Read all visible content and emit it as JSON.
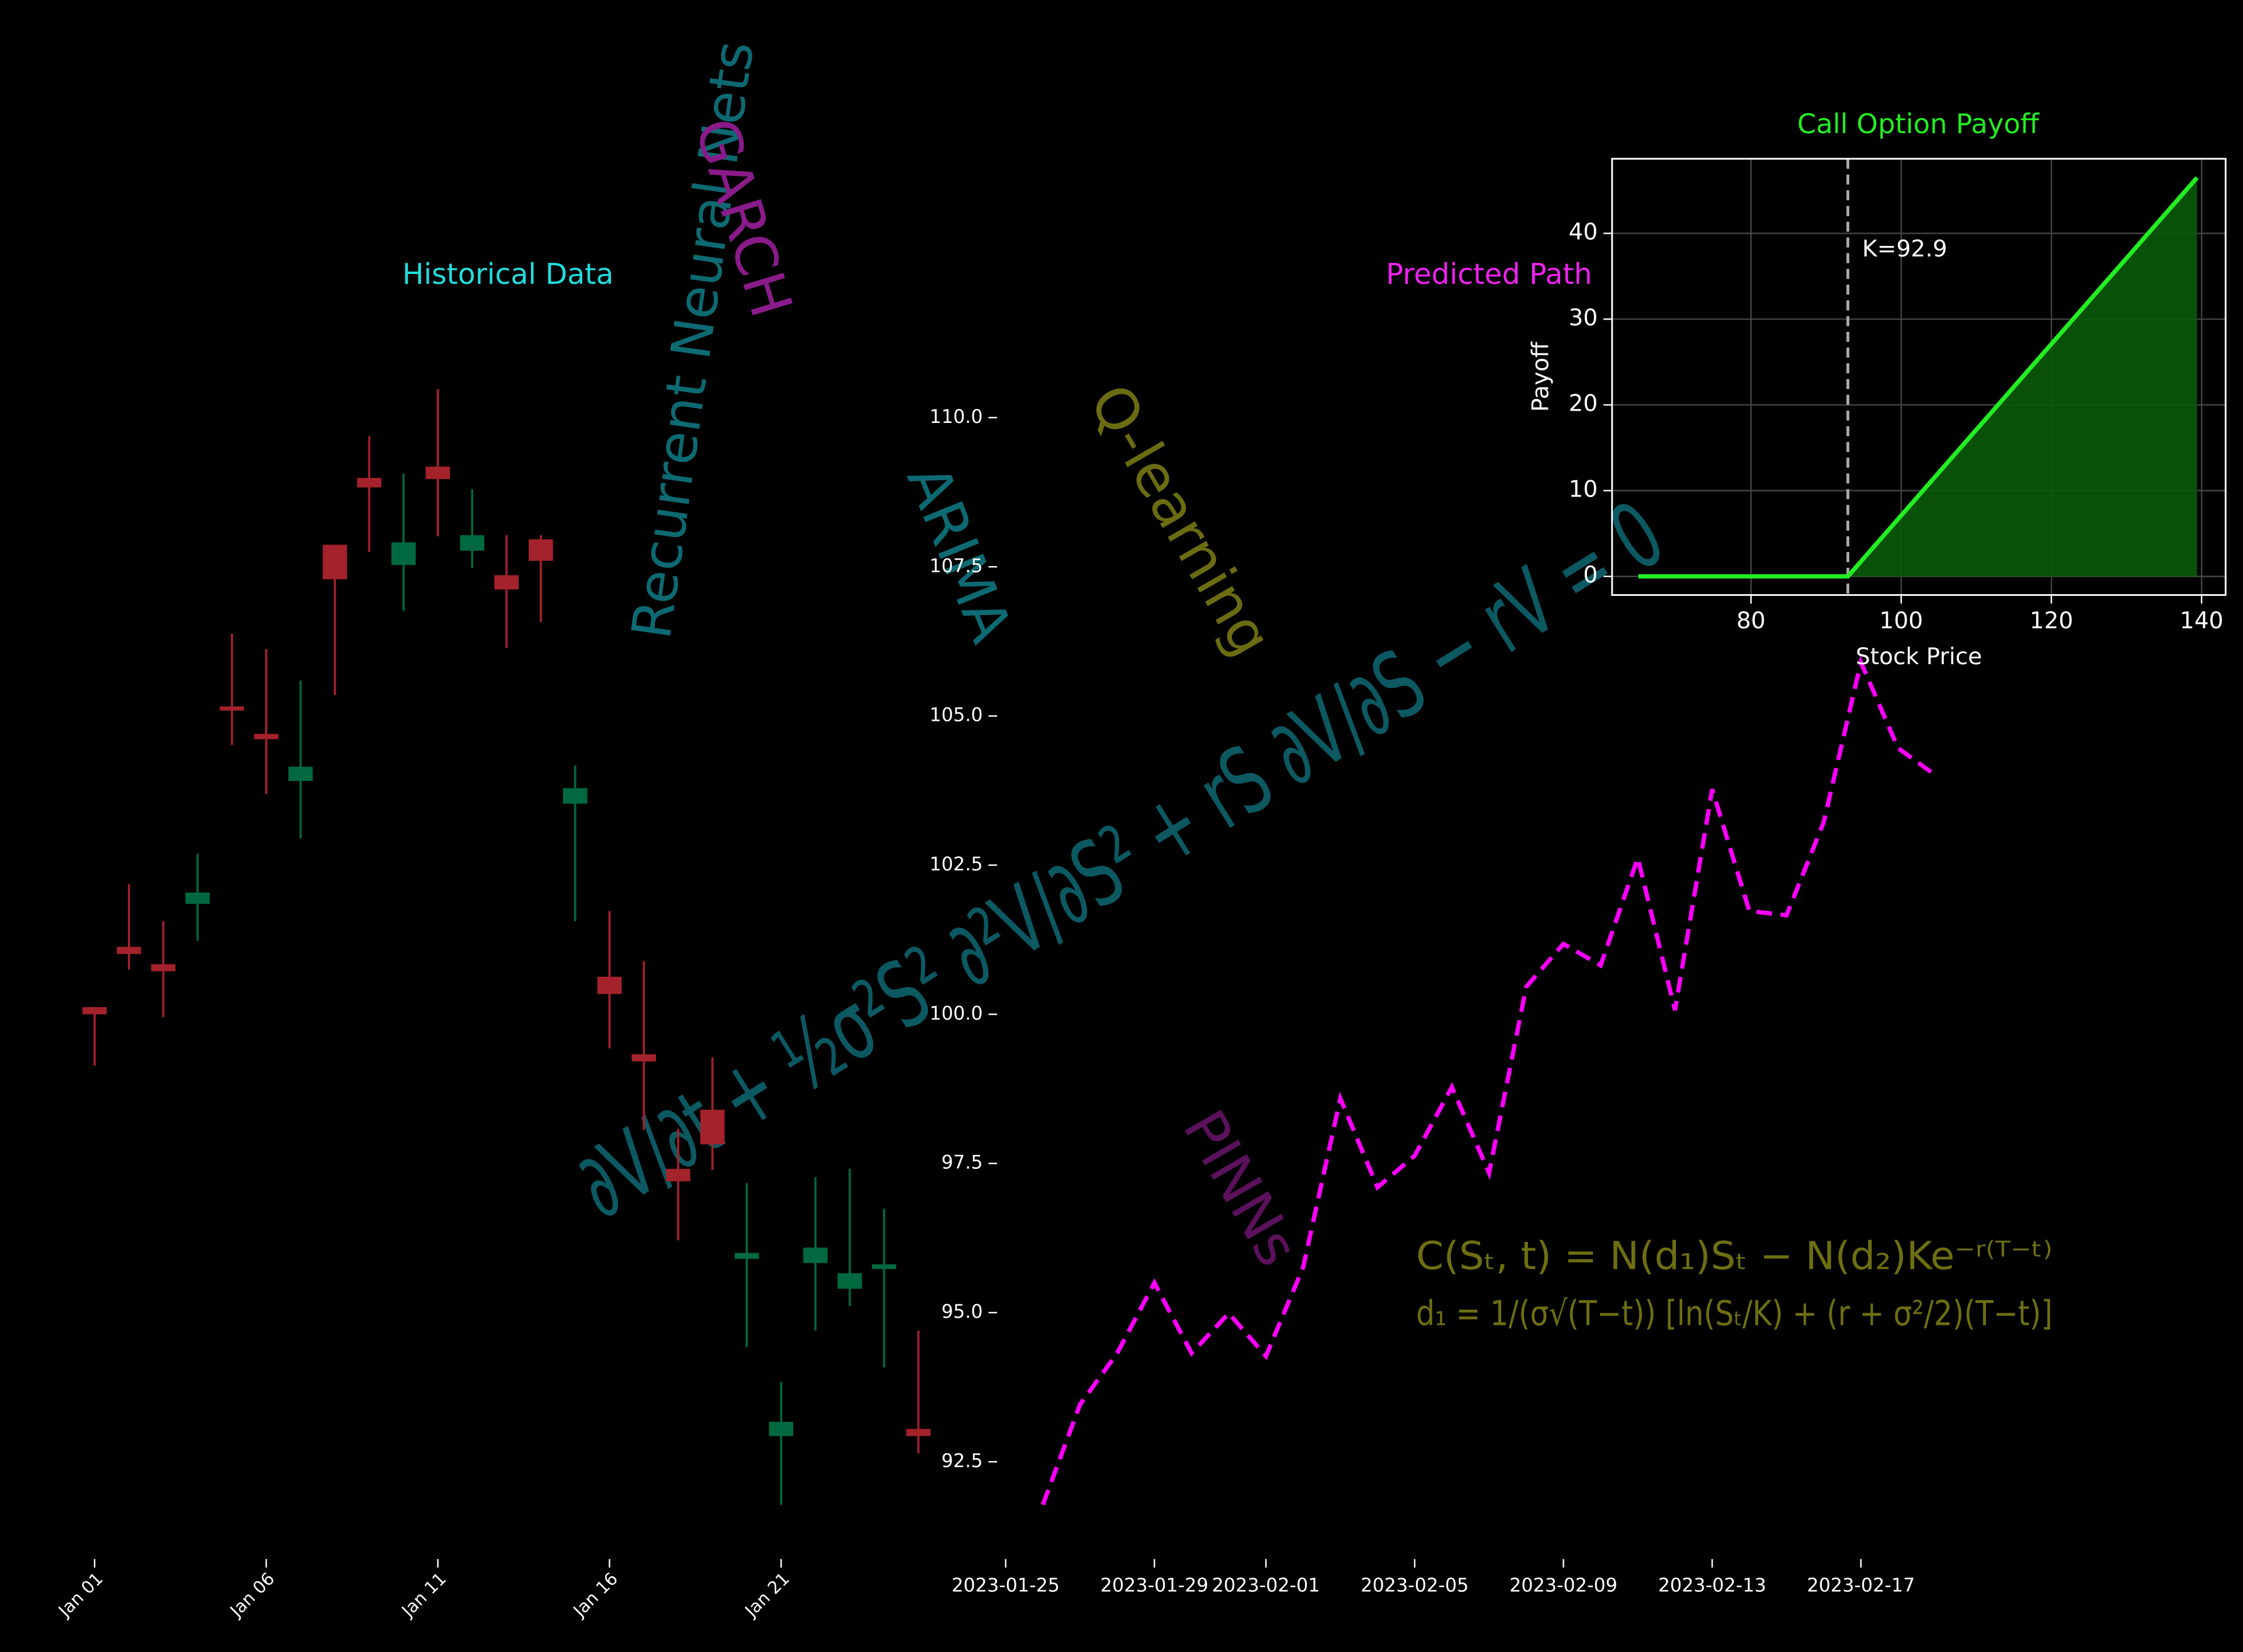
{
  "chart_data": [
    {
      "type": "candlestick",
      "title": "Historical Data",
      "title_color": "#22dddd",
      "categories": [
        "Jan 01",
        null,
        null,
        null,
        null,
        "Jan 06",
        null,
        null,
        null,
        null,
        "Jan 11",
        null,
        null,
        null,
        null,
        "Jan 16",
        null,
        null,
        null,
        null,
        "Jan 21",
        null,
        null,
        null,
        null
      ],
      "open": [
        100.12,
        101.13,
        100.84,
        101.85,
        105.16,
        104.7,
        103.91,
        107.87,
        108.99,
        107.53,
        109.18,
        107.77,
        107.36,
        107.96,
        103.53,
        100.63,
        99.33,
        97.41,
        98.4,
        95.9,
        92.93,
        95.83,
        95.4,
        95.73,
        93.05
      ],
      "high": [
        100.12,
        102.18,
        101.56,
        102.69,
        106.38,
        106.12,
        105.59,
        107.87,
        109.69,
        109.06,
        110.48,
        108.8,
        108.03,
        108.03,
        104.17,
        101.73,
        100.89,
        98.08,
        99.28,
        97.17,
        93.84,
        97.27,
        97.41,
        96.74,
        94.7
      ],
      "low": [
        99.14,
        100.75,
        99.95,
        101.23,
        104.51,
        103.69,
        102.95,
        105.35,
        107.75,
        106.76,
        108.01,
        107.48,
        106.14,
        106.57,
        101.56,
        99.43,
        98.06,
        96.21,
        97.39,
        94.42,
        91.78,
        94.7,
        95.11,
        94.08,
        92.64
      ],
      "close": [
        100.0,
        101.01,
        100.72,
        102.04,
        105.09,
        104.61,
        104.15,
        107.29,
        108.83,
        107.91,
        108.97,
        108.03,
        107.12,
        107.6,
        103.79,
        100.34,
        99.21,
        97.2,
        97.82,
        96.0,
        93.17,
        96.09,
        95.66,
        95.81,
        92.93
      ],
      "up_color": "#00693f",
      "down_color": "#a3222b",
      "ylim": [
        90.87,
        116.52
      ]
    },
    {
      "type": "line",
      "title": "Predicted Path",
      "title_color": "#ee22ee",
      "x": [
        "2023-01-26",
        "2023-01-27",
        "2023-01-28",
        "2023-01-29",
        "2023-01-30",
        "2023-01-31",
        "2023-02-01",
        "2023-02-02",
        "2023-02-03",
        "2023-02-04",
        "2023-02-05",
        "2023-02-06",
        "2023-02-07",
        "2023-02-08",
        "2023-02-09",
        "2023-02-10",
        "2023-02-11",
        "2023-02-12",
        "2023-02-13",
        "2023-02-14",
        "2023-02-15",
        "2023-02-16",
        "2023-02-17",
        "2023-02-18",
        "2023-02-19"
      ],
      "values": [
        91.78,
        93.46,
        94.32,
        95.5,
        94.32,
        94.99,
        94.27,
        95.76,
        98.59,
        97.1,
        97.63,
        98.78,
        97.34,
        100.46,
        101.18,
        100.82,
        102.62,
        100.07,
        103.77,
        101.73,
        101.66,
        103.22,
        105.9,
        104.46,
        104.01
      ],
      "color": "#ff00ff",
      "line_style": "dashed",
      "xlim": [
        "2023-01-25",
        "2023-02-27"
      ],
      "xticks": [
        "2023-01-25",
        "2023-01-29",
        "2023-02-01",
        "2023-02-05",
        "2023-02-09",
        "2023-02-13",
        "2023-02-17"
      ],
      "ylim": [
        90.87,
        116.52
      ],
      "yticks": [
        92.5,
        {
          "value": 95,
          "label": "95.0"
        },
        97.5,
        {
          "value": 100,
          "label": "100.0"
        },
        102.5,
        {
          "value": 105,
          "label": "105.0"
        },
        107.5,
        {
          "value": 110,
          "label": "110.0"
        }
      ],
      "grid": false
    },
    {
      "type": "line",
      "title": "Call Option Payoff",
      "title_color": "#22ee22",
      "x": [
        65,
        92.9,
        139.4
      ],
      "values": [
        0,
        0,
        46.5
      ],
      "color": "#22ee22",
      "line_style": "solid",
      "fill": true,
      "fill_color": "#0a5a0a",
      "strike": 92.9,
      "strike_label": "K=92.9",
      "xlabel": "Stock Price",
      "ylabel": "Payoff",
      "xlim": [
        61.5,
        143.2
      ],
      "xticks": [
        80,
        100,
        120,
        140
      ],
      "ylim": [
        -2.17,
        48.7
      ],
      "yticks": [
        0,
        10,
        20,
        30,
        40
      ],
      "grid": true,
      "frame": true
    }
  ],
  "annotations": [
    {
      "text": "Recurrent Neural Nets",
      "color": "#0d6a72"
    },
    {
      "text": "GARCH",
      "color": "#8a1b8a"
    },
    {
      "text": "ARIMA",
      "color": "#0d6a72"
    },
    {
      "text": "Q-learning",
      "color": "#6b6b12"
    },
    {
      "text": "∂V/∂t + ½σ²S² ∂²V/∂S² + rS ∂V/∂S − rV = 0",
      "color": "#0c5962"
    },
    {
      "text": "PINNs",
      "color": "#5b115b"
    },
    {
      "text": "C(Sₜ, t) = N(d₁)Sₜ − N(d₂)Ke⁻ʳ⁽ᵀ⁻ᵗ⁾",
      "color": "#6e6e12"
    },
    {
      "text": "d₁ = 1/(σ√(T−t)) [ln(Sₜ/K) + (r + σ²/2)(T−t)]",
      "color": "#6e6e12"
    }
  ]
}
